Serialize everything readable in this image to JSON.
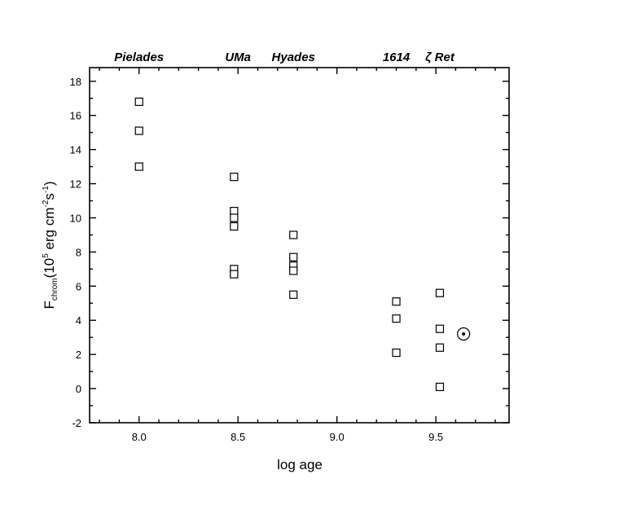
{
  "chart_data": {
    "type": "scatter",
    "title": "",
    "xlabel": "log age",
    "ylabel_main": "F",
    "ylabel_sub": "chrom",
    "ylabel_units_open": "(10",
    "ylabel_units_exp1": "5",
    "ylabel_units_mid": " erg cm",
    "ylabel_units_exp2": "-2",
    "ylabel_units_mid2": "s",
    "ylabel_units_exp3": "-1",
    "ylabel_units_close": ")",
    "xlim": [
      7.75,
      9.87
    ],
    "ylim": [
      -2,
      18.8
    ],
    "x_ticks": [
      8.0,
      8.5,
      9.0,
      9.5
    ],
    "x_tick_labels": [
      "8.0",
      "8.5",
      "9.0",
      "9.5"
    ],
    "y_ticks": [
      -2,
      0,
      2,
      4,
      6,
      8,
      10,
      12,
      14,
      16,
      18
    ],
    "y_tick_labels": [
      "-2",
      "0",
      "2",
      "4",
      "6",
      "8",
      "10",
      "12",
      "14",
      "16",
      "18"
    ],
    "grid": false,
    "group_labels": [
      {
        "label": "Pielades",
        "x": 8.0
      },
      {
        "label": "UMa",
        "x": 8.5
      },
      {
        "label": "Hyades",
        "x": 8.78
      },
      {
        "label": "1614",
        "x": 9.3
      },
      {
        "label": "ζ Ret",
        "x": 9.52
      }
    ],
    "series": [
      {
        "marker": "open-square",
        "points": [
          {
            "x": 8.0,
            "y": 16.8
          },
          {
            "x": 8.0,
            "y": 15.1
          },
          {
            "x": 8.0,
            "y": 13.0
          },
          {
            "x": 8.48,
            "y": 12.4
          },
          {
            "x": 8.48,
            "y": 10.4
          },
          {
            "x": 8.48,
            "y": 10.0
          },
          {
            "x": 8.48,
            "y": 9.5
          },
          {
            "x": 8.48,
            "y": 7.0
          },
          {
            "x": 8.48,
            "y": 6.7
          },
          {
            "x": 8.78,
            "y": 9.0
          },
          {
            "x": 8.78,
            "y": 7.7
          },
          {
            "x": 8.78,
            "y": 7.2
          },
          {
            "x": 8.78,
            "y": 6.9
          },
          {
            "x": 8.78,
            "y": 5.5
          },
          {
            "x": 9.3,
            "y": 5.1
          },
          {
            "x": 9.3,
            "y": 4.1
          },
          {
            "x": 9.3,
            "y": 2.1
          },
          {
            "x": 9.52,
            "y": 5.6
          },
          {
            "x": 9.52,
            "y": 3.5
          },
          {
            "x": 9.52,
            "y": 2.4
          },
          {
            "x": 9.52,
            "y": 0.1
          }
        ]
      },
      {
        "name": "Sun",
        "marker": "sun-symbol",
        "points": [
          {
            "x": 9.64,
            "y": 3.2
          }
        ]
      }
    ]
  }
}
